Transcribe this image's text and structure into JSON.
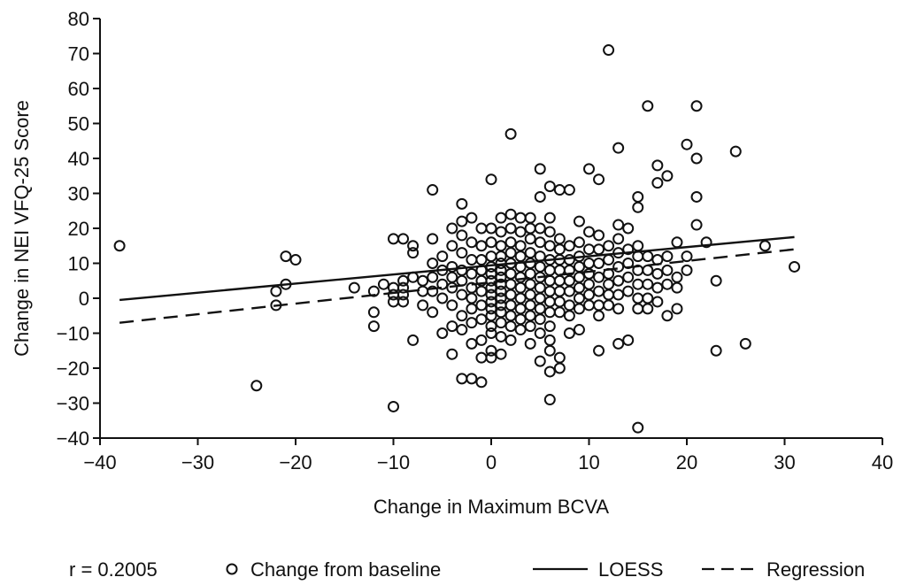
{
  "chart_data": {
    "type": "scatter",
    "xlabel": "Change in Maximum BCVA",
    "ylabel": "Change in NEI VFQ-25 Score",
    "xlim": [
      -40,
      40
    ],
    "ylim": [
      -40,
      80
    ],
    "xticks": [
      -40,
      -30,
      -20,
      -10,
      0,
      10,
      20,
      30,
      40
    ],
    "yticks": [
      -40,
      -30,
      -20,
      -10,
      0,
      10,
      20,
      30,
      40,
      50,
      60,
      70,
      80
    ],
    "xtick_labels": [
      "−40",
      "−30",
      "−20",
      "−10",
      "0",
      "10",
      "20",
      "30",
      "40"
    ],
    "ytick_labels": [
      "−40",
      "−30",
      "−20",
      "−10",
      "0",
      "10",
      "20",
      "30",
      "40",
      "50",
      "60",
      "70",
      "80"
    ],
    "grid": false,
    "legend_position": "bottom",
    "legend": {
      "r_label": "r = 0.2005",
      "points_label": "Change from baseline",
      "loess_label": "LOESS",
      "regression_label": "Regression"
    },
    "series": [
      {
        "name": "Change from baseline",
        "kind": "points",
        "points": [
          [
            -38,
            15
          ],
          [
            -24,
            -25
          ],
          [
            -22,
            2
          ],
          [
            -22,
            -2
          ],
          [
            -21,
            12
          ],
          [
            -21,
            4
          ],
          [
            -20,
            11
          ],
          [
            -14,
            3
          ],
          [
            -12,
            2
          ],
          [
            -12,
            -4
          ],
          [
            -12,
            -8
          ],
          [
            -11,
            4
          ],
          [
            -10,
            3
          ],
          [
            -10,
            1
          ],
          [
            -10,
            -1
          ],
          [
            -10,
            17
          ],
          [
            -10,
            -31
          ],
          [
            -9,
            17
          ],
          [
            -9,
            5
          ],
          [
            -9,
            3
          ],
          [
            -9,
            1
          ],
          [
            -9,
            -1
          ],
          [
            -8,
            15
          ],
          [
            -8,
            13
          ],
          [
            -8,
            6
          ],
          [
            -8,
            -12
          ],
          [
            -7,
            5
          ],
          [
            -7,
            2
          ],
          [
            -7,
            -2
          ],
          [
            -6,
            31
          ],
          [
            -6,
            17
          ],
          [
            -6,
            10
          ],
          [
            -6,
            6
          ],
          [
            -6,
            2
          ],
          [
            -6,
            -4
          ],
          [
            -5,
            12
          ],
          [
            -5,
            8
          ],
          [
            -5,
            4
          ],
          [
            -5,
            0
          ],
          [
            -5,
            -10
          ],
          [
            -4,
            20
          ],
          [
            -4,
            15
          ],
          [
            -4,
            9
          ],
          [
            -4,
            6
          ],
          [
            -4,
            3
          ],
          [
            -4,
            -2
          ],
          [
            -4,
            -8
          ],
          [
            -4,
            -16
          ],
          [
            -3,
            27
          ],
          [
            -3,
            22
          ],
          [
            -3,
            18
          ],
          [
            -3,
            13
          ],
          [
            -3,
            8
          ],
          [
            -3,
            5
          ],
          [
            -3,
            1
          ],
          [
            -3,
            -5
          ],
          [
            -3,
            -9
          ],
          [
            -3,
            -23
          ],
          [
            -2,
            23
          ],
          [
            -2,
            16
          ],
          [
            -2,
            11
          ],
          [
            -2,
            7
          ],
          [
            -2,
            3
          ],
          [
            -2,
            0
          ],
          [
            -2,
            -3
          ],
          [
            -2,
            -7
          ],
          [
            -2,
            -13
          ],
          [
            -2,
            -23
          ],
          [
            -1,
            20
          ],
          [
            -1,
            15
          ],
          [
            -1,
            11
          ],
          [
            -1,
            8
          ],
          [
            -1,
            5
          ],
          [
            -1,
            2
          ],
          [
            -1,
            -2
          ],
          [
            -1,
            -6
          ],
          [
            -1,
            -12
          ],
          [
            -1,
            -17
          ],
          [
            -1,
            -24
          ],
          [
            0,
            34
          ],
          [
            0,
            20
          ],
          [
            0,
            16
          ],
          [
            0,
            12
          ],
          [
            0,
            9
          ],
          [
            0,
            7
          ],
          [
            0,
            5
          ],
          [
            0,
            3
          ],
          [
            0,
            1
          ],
          [
            0,
            -1
          ],
          [
            0,
            -3
          ],
          [
            0,
            -5
          ],
          [
            0,
            -8
          ],
          [
            0,
            -10
          ],
          [
            0,
            -15
          ],
          [
            0,
            -17
          ],
          [
            1,
            23
          ],
          [
            1,
            19
          ],
          [
            1,
            15
          ],
          [
            1,
            12
          ],
          [
            1,
            10
          ],
          [
            1,
            8
          ],
          [
            1,
            6
          ],
          [
            1,
            4
          ],
          [
            1,
            2
          ],
          [
            1,
            0
          ],
          [
            1,
            -2
          ],
          [
            1,
            -4
          ],
          [
            1,
            -7
          ],
          [
            1,
            -11
          ],
          [
            1,
            -16
          ],
          [
            2,
            47
          ],
          [
            2,
            24
          ],
          [
            2,
            20
          ],
          [
            2,
            16
          ],
          [
            2,
            13
          ],
          [
            2,
            10
          ],
          [
            2,
            7
          ],
          [
            2,
            4
          ],
          [
            2,
            1
          ],
          [
            2,
            -2
          ],
          [
            2,
            -5
          ],
          [
            2,
            -8
          ],
          [
            2,
            -12
          ],
          [
            3,
            23
          ],
          [
            3,
            19
          ],
          [
            3,
            15
          ],
          [
            3,
            12
          ],
          [
            3,
            9
          ],
          [
            3,
            6
          ],
          [
            3,
            3
          ],
          [
            3,
            0
          ],
          [
            3,
            -3
          ],
          [
            3,
            -6
          ],
          [
            3,
            -9
          ],
          [
            4,
            23
          ],
          [
            4,
            20
          ],
          [
            4,
            17
          ],
          [
            4,
            13
          ],
          [
            4,
            10
          ],
          [
            4,
            7
          ],
          [
            4,
            4
          ],
          [
            4,
            1
          ],
          [
            4,
            -2
          ],
          [
            4,
            -5
          ],
          [
            4,
            -8
          ],
          [
            4,
            -13
          ],
          [
            5,
            37
          ],
          [
            5,
            29
          ],
          [
            5,
            20
          ],
          [
            5,
            16
          ],
          [
            5,
            12
          ],
          [
            5,
            9
          ],
          [
            5,
            6
          ],
          [
            5,
            3
          ],
          [
            5,
            0
          ],
          [
            5,
            -3
          ],
          [
            5,
            -6
          ],
          [
            5,
            -10
          ],
          [
            5,
            -18
          ],
          [
            6,
            32
          ],
          [
            6,
            23
          ],
          [
            6,
            19
          ],
          [
            6,
            15
          ],
          [
            6,
            11
          ],
          [
            6,
            8
          ],
          [
            6,
            5
          ],
          [
            6,
            2
          ],
          [
            6,
            -1
          ],
          [
            6,
            -4
          ],
          [
            6,
            -8
          ],
          [
            6,
            -12
          ],
          [
            6,
            -15
          ],
          [
            6,
            -21
          ],
          [
            6,
            -29
          ],
          [
            7,
            31
          ],
          [
            7,
            17
          ],
          [
            7,
            14
          ],
          [
            7,
            11
          ],
          [
            7,
            8
          ],
          [
            7,
            5
          ],
          [
            7,
            2
          ],
          [
            7,
            -1
          ],
          [
            7,
            -4
          ],
          [
            7,
            -17
          ],
          [
            7,
            -20
          ],
          [
            8,
            31
          ],
          [
            8,
            15
          ],
          [
            8,
            11
          ],
          [
            8,
            8
          ],
          [
            8,
            5
          ],
          [
            8,
            2
          ],
          [
            8,
            -2
          ],
          [
            8,
            -5
          ],
          [
            8,
            -10
          ],
          [
            9,
            22
          ],
          [
            9,
            16
          ],
          [
            9,
            12
          ],
          [
            9,
            9
          ],
          [
            9,
            6
          ],
          [
            9,
            3
          ],
          [
            9,
            0
          ],
          [
            9,
            -3
          ],
          [
            9,
            -9
          ],
          [
            10,
            37
          ],
          [
            10,
            19
          ],
          [
            10,
            14
          ],
          [
            10,
            10
          ],
          [
            10,
            7
          ],
          [
            10,
            4
          ],
          [
            10,
            1
          ],
          [
            10,
            -2
          ],
          [
            11,
            34
          ],
          [
            11,
            18
          ],
          [
            11,
            14
          ],
          [
            11,
            10
          ],
          [
            11,
            6
          ],
          [
            11,
            2
          ],
          [
            11,
            -2
          ],
          [
            11,
            -5
          ],
          [
            11,
            -15
          ],
          [
            12,
            71
          ],
          [
            12,
            15
          ],
          [
            12,
            11
          ],
          [
            12,
            7
          ],
          [
            12,
            4
          ],
          [
            12,
            1
          ],
          [
            12,
            -2
          ],
          [
            13,
            43
          ],
          [
            13,
            21
          ],
          [
            13,
            17
          ],
          [
            13,
            13
          ],
          [
            13,
            9
          ],
          [
            13,
            5
          ],
          [
            13,
            1
          ],
          [
            13,
            -3
          ],
          [
            13,
            -13
          ],
          [
            14,
            20
          ],
          [
            14,
            14
          ],
          [
            14,
            10
          ],
          [
            14,
            6
          ],
          [
            14,
            2
          ],
          [
            14,
            -12
          ],
          [
            15,
            29
          ],
          [
            15,
            26
          ],
          [
            15,
            15
          ],
          [
            15,
            12
          ],
          [
            15,
            8
          ],
          [
            15,
            4
          ],
          [
            15,
            0
          ],
          [
            15,
            -3
          ],
          [
            15,
            -37
          ],
          [
            16,
            55
          ],
          [
            16,
            12
          ],
          [
            16,
            8
          ],
          [
            16,
            4
          ],
          [
            16,
            0
          ],
          [
            16,
            -3
          ],
          [
            17,
            38
          ],
          [
            17,
            33
          ],
          [
            17,
            11
          ],
          [
            17,
            7
          ],
          [
            17,
            3
          ],
          [
            17,
            -1
          ],
          [
            18,
            35
          ],
          [
            18,
            12
          ],
          [
            18,
            8
          ],
          [
            18,
            4
          ],
          [
            18,
            -5
          ],
          [
            19,
            16
          ],
          [
            19,
            6
          ],
          [
            19,
            3
          ],
          [
            19,
            -3
          ],
          [
            20,
            44
          ],
          [
            20,
            12
          ],
          [
            20,
            8
          ],
          [
            21,
            55
          ],
          [
            21,
            40
          ],
          [
            21,
            29
          ],
          [
            21,
            21
          ],
          [
            22,
            16
          ],
          [
            23,
            5
          ],
          [
            23,
            -15
          ],
          [
            25,
            42
          ],
          [
            26,
            -13
          ],
          [
            28,
            15
          ],
          [
            31,
            9
          ]
        ]
      },
      {
        "name": "LOESS",
        "kind": "line",
        "x": [
          -38,
          31
        ],
        "y": [
          -0.5,
          17.5
        ]
      },
      {
        "name": "Regression",
        "kind": "line",
        "x": [
          -38,
          31
        ],
        "y": [
          -7,
          14
        ]
      }
    ]
  }
}
